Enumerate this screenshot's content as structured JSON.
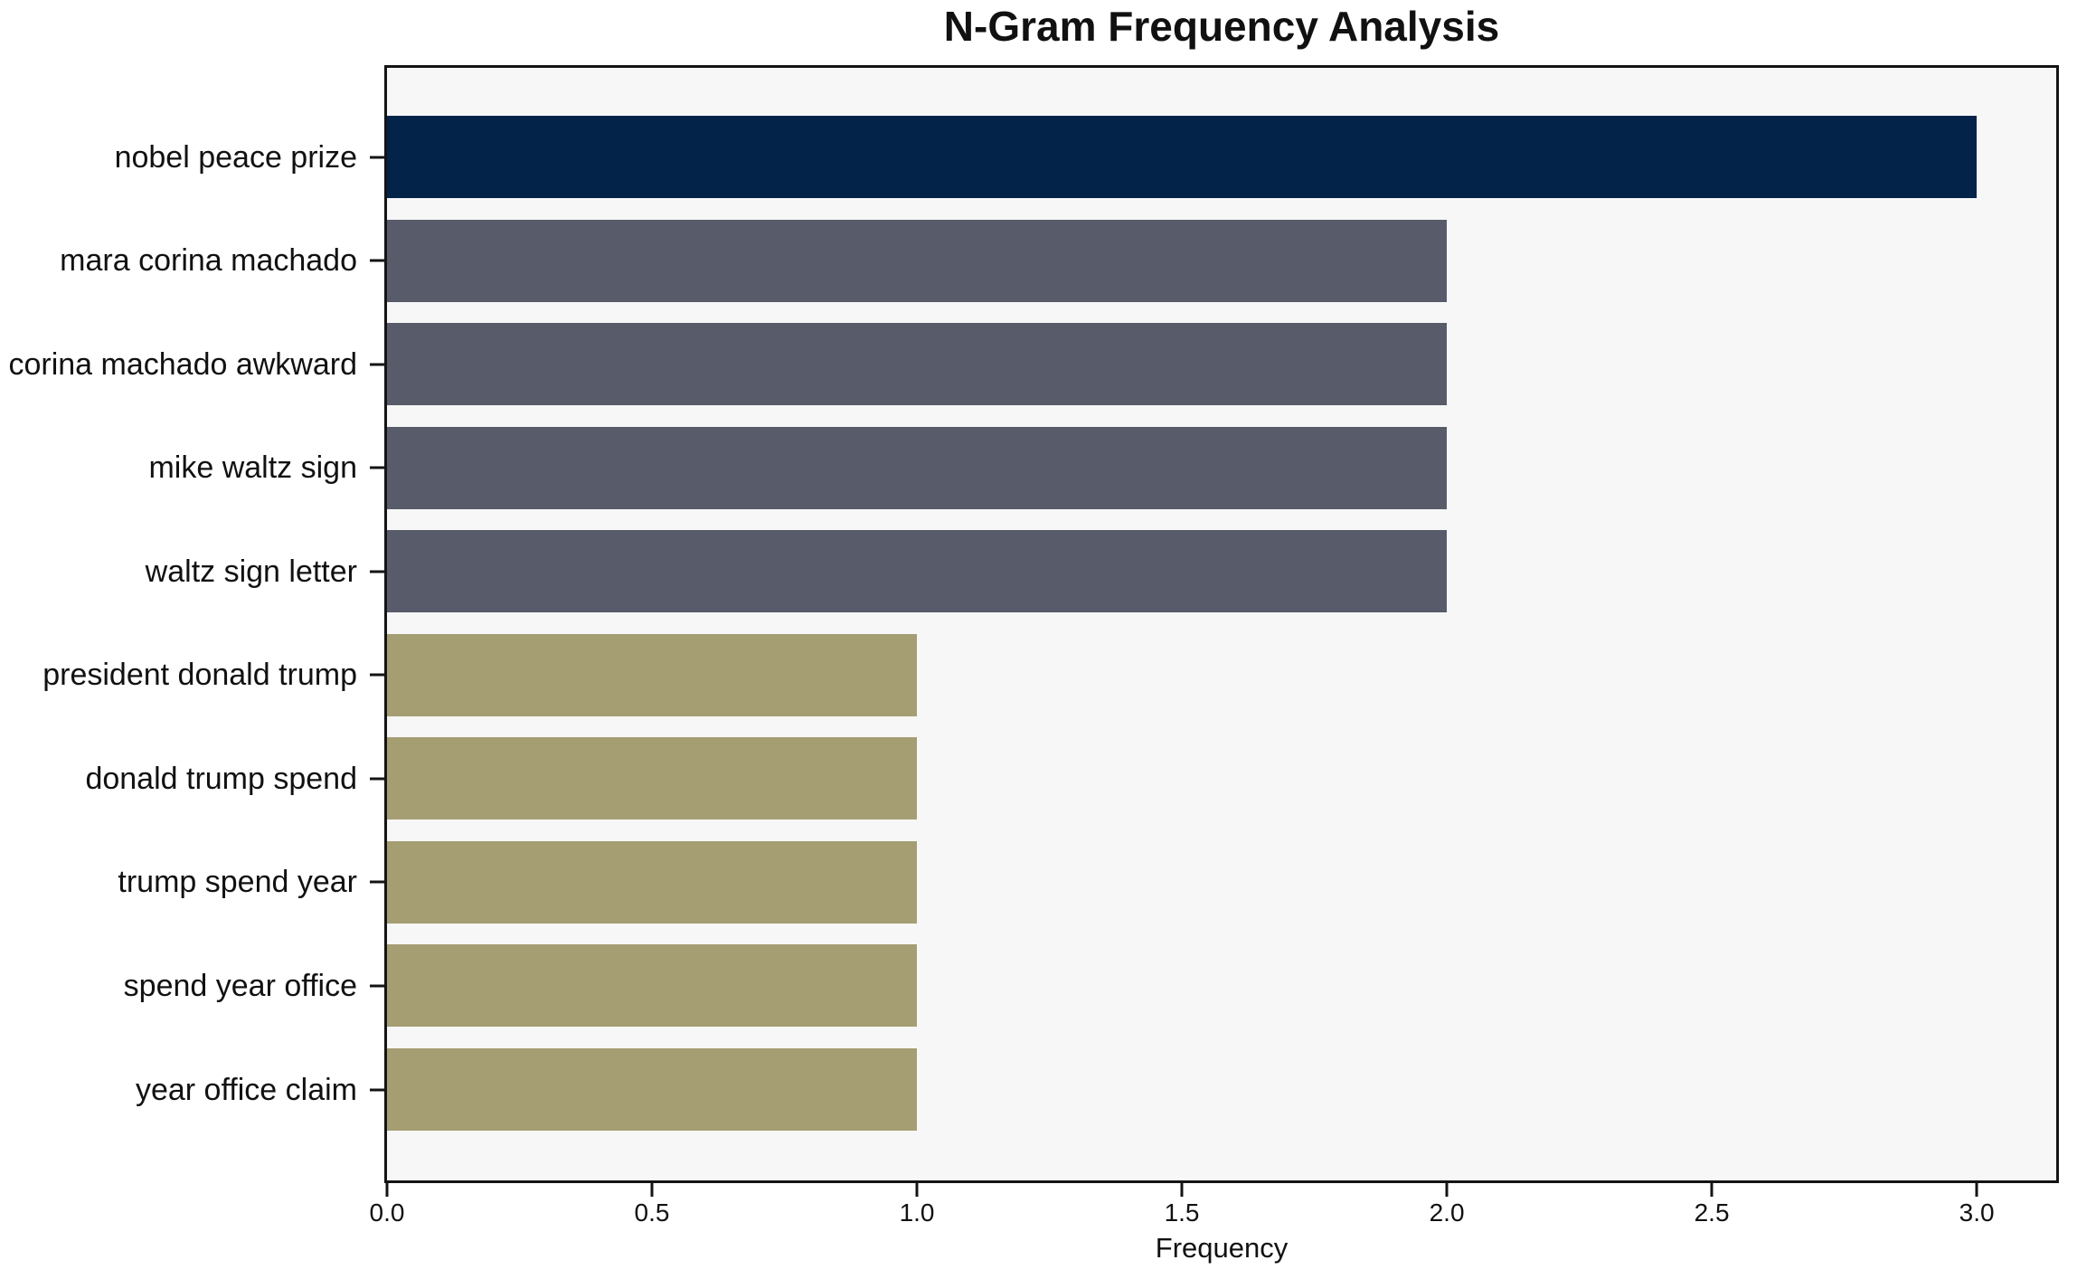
{
  "chart_data": {
    "type": "bar",
    "orientation": "horizontal",
    "title": "N-Gram Frequency Analysis",
    "xlabel": "Frequency",
    "ylabel": "",
    "categories": [
      "nobel peace prize",
      "mara corina machado",
      "corina machado awkward",
      "mike waltz sign",
      "waltz sign letter",
      "president donald trump",
      "donald trump spend",
      "trump spend year",
      "spend year office",
      "year office claim"
    ],
    "values": [
      3,
      2,
      2,
      2,
      2,
      1,
      1,
      1,
      1,
      1
    ],
    "bar_colors": [
      "#032349",
      "#575b6a",
      "#575b6a",
      "#575b6a",
      "#575b6a",
      "#a59e72",
      "#a59e72",
      "#a59e72",
      "#a59e72",
      "#a59e72"
    ],
    "xlim": [
      0,
      3.15
    ],
    "xticks": [
      0,
      0.5,
      1,
      1.5,
      2,
      2.5,
      3
    ],
    "xtick_labels": [
      "0.0",
      "0.5",
      "1.0",
      "1.5",
      "2.0",
      "2.5",
      "3.0"
    ],
    "grid": false,
    "legend": "none",
    "colors": {
      "figure_background": "#ffffff",
      "plot_background": "#f7f7f8",
      "axis": "#141414",
      "text": "#111111",
      "navy": "#032349",
      "slate": "#575b6a",
      "olive": "#a59e72"
    }
  }
}
